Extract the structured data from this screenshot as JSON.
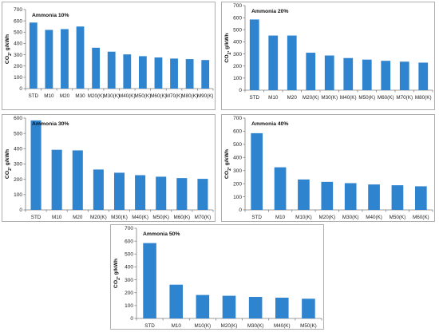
{
  "ui": {
    "bar_color": "#2f84cf"
  },
  "chart_data": [
    {
      "type": "bar",
      "title": "Ammonia 10%",
      "ylabel": "CO2, g/kWh",
      "ylim": [
        0,
        700
      ],
      "yticks": [
        0,
        100,
        200,
        300,
        400,
        500,
        600,
        700
      ],
      "grid": false,
      "categories": [
        "STD",
        "M10",
        "M20",
        "M30",
        "M20(K)",
        "M30(K)",
        "M40(K)",
        "M50(K)",
        "M60(K)",
        "M70(K)",
        "M80(K)",
        "M90(K)"
      ],
      "values": [
        585,
        520,
        527,
        550,
        362,
        327,
        303,
        287,
        276,
        266,
        261,
        253
      ]
    },
    {
      "type": "bar",
      "title": "Ammonia 20%",
      "ylabel": "CO2, g/kWh",
      "ylim": [
        0,
        700
      ],
      "yticks": [
        0,
        100,
        200,
        300,
        400,
        500,
        600,
        700
      ],
      "grid": false,
      "categories": [
        "STD",
        "M10",
        "M20",
        "M20(K)",
        "M30(K)",
        "M40(K)",
        "M50(K)",
        "M60(K)",
        "M70(K)",
        "M80(K)"
      ],
      "values": [
        585,
        452,
        452,
        310,
        287,
        266,
        253,
        243,
        236,
        228
      ]
    },
    {
      "type": "bar",
      "title": "Ammonia 30%",
      "ylabel": "CO2, g/kWh",
      "ylim": [
        0,
        600
      ],
      "yticks": [
        0,
        100,
        200,
        300,
        400,
        500,
        600
      ],
      "grid": false,
      "categories": [
        "STD",
        "M10",
        "M20",
        "M20(K)",
        "M30(K)",
        "M40(K)",
        "M50(K)",
        "M60(K)",
        "M70(K)"
      ],
      "values": [
        585,
        393,
        389,
        264,
        243,
        227,
        217,
        208,
        203
      ]
    },
    {
      "type": "bar",
      "title": "Ammonia 40%",
      "ylabel": "CO2, g/kWh",
      "ylim": [
        0,
        700
      ],
      "yticks": [
        0,
        100,
        200,
        300,
        400,
        500,
        600,
        700
      ],
      "grid": false,
      "categories": [
        "STD",
        "M10",
        "M10(K)",
        "M20(K)",
        "M30(K)",
        "M40(K)",
        "M50(K)",
        "M60(K)"
      ],
      "values": [
        585,
        325,
        232,
        214,
        204,
        194,
        188,
        180
      ]
    },
    {
      "type": "bar",
      "title": "Ammonia 50%",
      "ylabel": "CO2, g/kWh",
      "ylim": [
        0,
        700
      ],
      "yticks": [
        0,
        100,
        200,
        300,
        400,
        500,
        600,
        700
      ],
      "grid": false,
      "categories": [
        "STD",
        "M10",
        "M10(K)",
        "M20(K)",
        "M30(K)",
        "M40(K)",
        "M50(K)"
      ],
      "values": [
        585,
        262,
        182,
        176,
        167,
        161,
        153
      ]
    }
  ]
}
